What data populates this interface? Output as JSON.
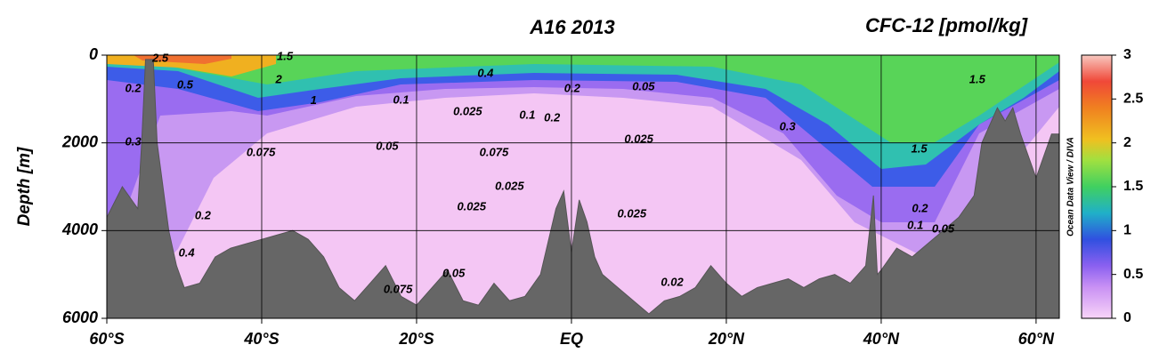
{
  "chart_data": {
    "type": "section",
    "title": "A16 2013",
    "subtitle": "CFC-12 [pmol/kg]",
    "y_label": "Depth [m]",
    "watermark": "Ocean Data View / DIVA",
    "xlim": [
      -60,
      63
    ],
    "ylim": [
      0,
      6000
    ],
    "y_inverted": true,
    "grid": true,
    "xticks": [
      {
        "value": -60,
        "label": "60°S"
      },
      {
        "value": -40,
        "label": "40°S"
      },
      {
        "value": -20,
        "label": "20°S"
      },
      {
        "value": 0,
        "label": "EQ"
      },
      {
        "value": 20,
        "label": "20°N"
      },
      {
        "value": 40,
        "label": "40°N"
      },
      {
        "value": 60,
        "label": "60°N"
      }
    ],
    "yticks": [
      0,
      2000,
      4000,
      6000
    ],
    "colorbar": {
      "lim": [
        0,
        3
      ],
      "ticks": [
        0,
        0.5,
        1,
        1.5,
        2,
        2.5,
        3
      ]
    },
    "bathymetry": {
      "x": [
        -60,
        -58,
        -56,
        -55.5,
        -55,
        -54,
        -53.5,
        -52,
        -51,
        -50,
        -48,
        -46,
        -44,
        -42,
        -40,
        -38,
        -36,
        -34,
        -32,
        -30,
        -28,
        -26,
        -24,
        -22,
        -20,
        -18,
        -16,
        -14,
        -12,
        -10,
        -8,
        -6,
        -4,
        -2,
        -1,
        0,
        1,
        2,
        3,
        4,
        6,
        8,
        10,
        12,
        14,
        16,
        18,
        20,
        22,
        24,
        26,
        28,
        30,
        32,
        34,
        36,
        38,
        39,
        39.5,
        40,
        42,
        44,
        46,
        48,
        50,
        52,
        53,
        55,
        56,
        57,
        58,
        60,
        62,
        63
      ],
      "depth": [
        3700,
        3000,
        3500,
        2000,
        100,
        100,
        2000,
        4000,
        4800,
        5300,
        5200,
        4600,
        4400,
        4300,
        4200,
        4100,
        4000,
        4200,
        4600,
        5300,
        5600,
        5200,
        4800,
        5500,
        5700,
        5300,
        4900,
        5600,
        5700,
        5200,
        5600,
        5500,
        5000,
        3500,
        3100,
        4500,
        3300,
        3800,
        4600,
        5000,
        5300,
        5600,
        5900,
        5600,
        5500,
        5300,
        4800,
        5200,
        5500,
        5300,
        5200,
        5100,
        5300,
        5100,
        5000,
        5200,
        4800,
        3200,
        5000,
        4900,
        4400,
        4600,
        4300,
        4000,
        3700,
        3200,
        2000,
        1200,
        1500,
        1200,
        1800,
        2800,
        1800,
        1800
      ]
    },
    "contour_labels": [
      {
        "x": -53.1,
        "depth": 80,
        "value": 2.5
      },
      {
        "x": -37,
        "depth": 40,
        "value": 1.5
      },
      {
        "x": -37.8,
        "depth": 570,
        "value": 2
      },
      {
        "x": -33.3,
        "depth": 1050,
        "value": 1
      },
      {
        "x": -49.9,
        "depth": 690,
        "value": 0.5
      },
      {
        "x": -56.6,
        "depth": 770,
        "value": 0.2
      },
      {
        "x": -56.6,
        "depth": 1990,
        "value": 0.3
      },
      {
        "x": -40.1,
        "depth": 2230,
        "value": 0.075
      },
      {
        "x": -23.8,
        "depth": 2090,
        "value": 0.05
      },
      {
        "x": -22,
        "depth": 1030,
        "value": 0.1
      },
      {
        "x": -11.1,
        "depth": 430,
        "value": 0.4
      },
      {
        "x": -13.4,
        "depth": 1300,
        "value": 0.025
      },
      {
        "x": -5.7,
        "depth": 1380,
        "value": 0.1
      },
      {
        "x": -2.5,
        "depth": 1440,
        "value": 0.2
      },
      {
        "x": 0.1,
        "depth": 770,
        "value": 0.2
      },
      {
        "x": 9.3,
        "depth": 730,
        "value": 0.05
      },
      {
        "x": -10,
        "depth": 2230,
        "value": 0.075
      },
      {
        "x": -8,
        "depth": 3000,
        "value": 0.025
      },
      {
        "x": -12.9,
        "depth": 3470,
        "value": 0.025
      },
      {
        "x": 8.7,
        "depth": 1930,
        "value": 0.025
      },
      {
        "x": 27.9,
        "depth": 1640,
        "value": 0.3
      },
      {
        "x": 44.9,
        "depth": 2150,
        "value": 1.5
      },
      {
        "x": 52.4,
        "depth": 570,
        "value": 1.5
      },
      {
        "x": 7.8,
        "depth": 3630,
        "value": 0.025
      },
      {
        "x": -15.2,
        "depth": 4990,
        "value": 0.05
      },
      {
        "x": -22.4,
        "depth": 5350,
        "value": 0.075
      },
      {
        "x": 13,
        "depth": 5190,
        "value": 0.02
      },
      {
        "x": 45,
        "depth": 3510,
        "value": 0.2
      },
      {
        "x": 44.4,
        "depth": 3890,
        "value": 0.1
      },
      {
        "x": 48,
        "depth": 3970,
        "value": 0.05
      },
      {
        "x": -47.6,
        "depth": 3670,
        "value": 0.2
      },
      {
        "x": -49.7,
        "depth": 4520,
        "value": 0.4
      }
    ]
  }
}
